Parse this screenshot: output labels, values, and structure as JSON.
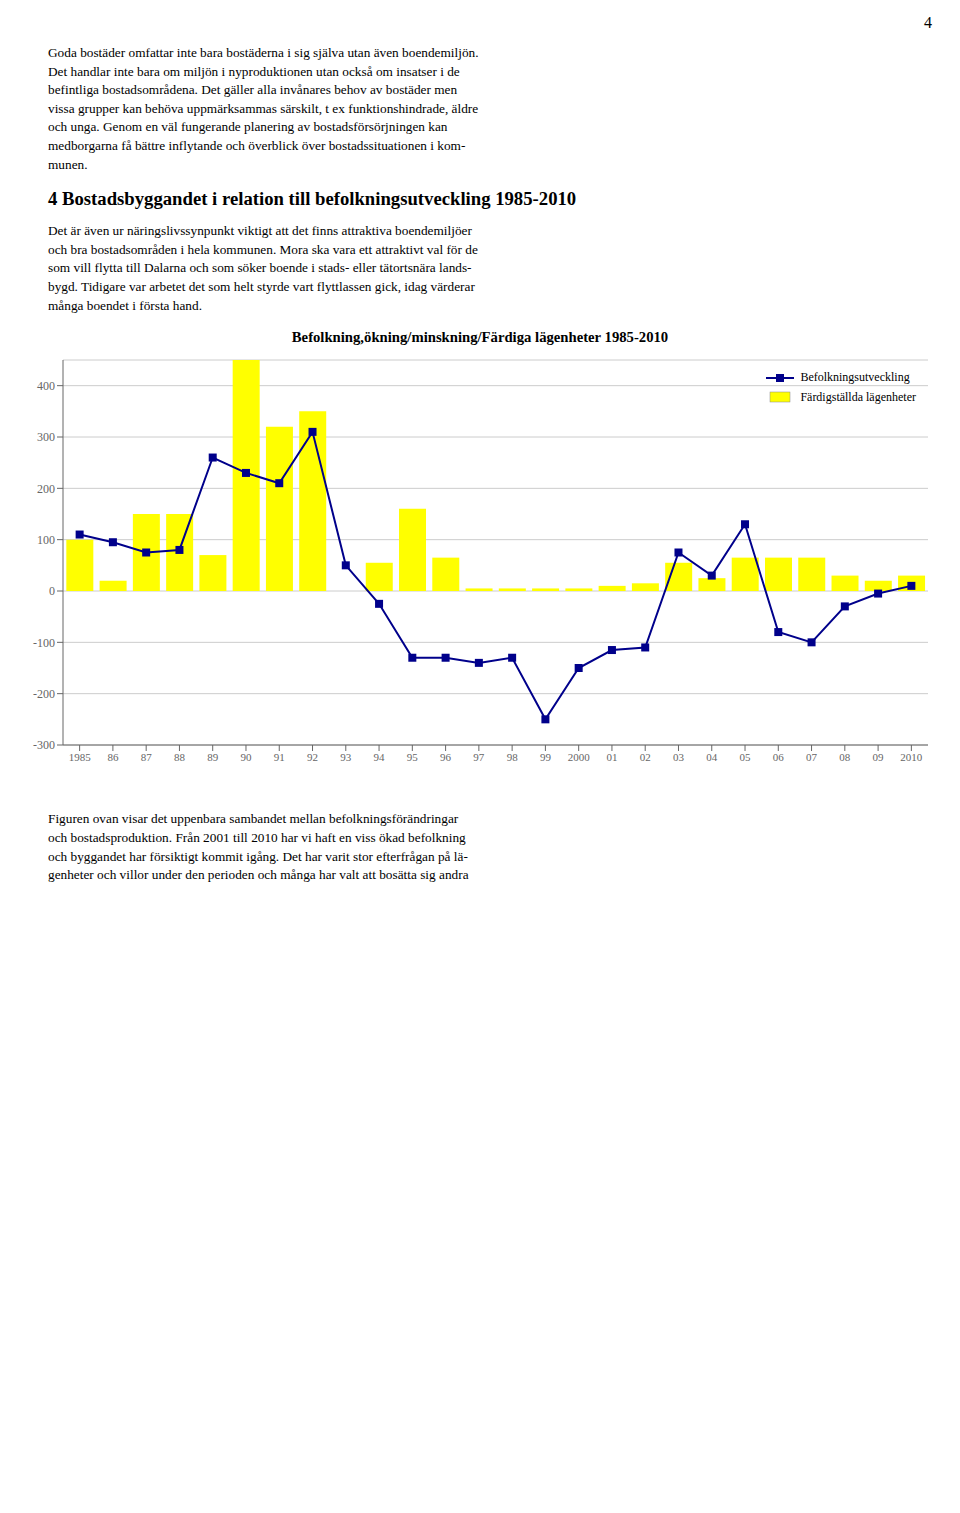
{
  "chart_data": {
    "type": "bar",
    "title": "Befolkning,ökning/minskning/Färdiga lägenheter 1985-2010",
    "annotations": [
      "4",
      "Goda bostäder omfattar inte bara bostäderna i sig själva utan även boendemiljön.\nDet handlar inte bara om miljön i nyproduktionen utan också om insatser i de\nbefintliga bostadsområdena. Det gäller alla invånares behov av bostäder men\nvissa grupper kan behöva uppmärksammas särskilt, t ex funktionshindrade, äldre\noch unga. Genom en väl fungerande planering av bostadsförsörjningen kan\nmedborgarna få bättre inflytande och överblick över bostadssituationen i kom-\nmunen.",
      "4 Bostadsbyggandet i relation till befolkningsutveckling 1985-2010",
      "Det är även ur näringslivssynpunkt viktigt att det finns attraktiva boendemiljöer\noch bra bostadsområden i hela kommunen. Mora ska vara ett attraktivt val för de\nsom vill flytta till Dalarna och som söker boende i stads- eller tätortsnära lands-\nbygd. Tidigare var arbetet det som helt styrde vart flyttlassen gick, idag värderar\nmånga boendet i första hand.",
      "Figuren ovan visar det uppenbara sambandet mellan befolkningsförändringar\noch bostadsproduktion. Från 2001 till 2010 har vi haft en viss ökad befolkning\noch byggandet har försiktigt kommit igång. Det har varit stor efterfrågan på lä-\ngenheter och villor under den perioden och många har valt att bosätta sig andra"
    ],
    "categories": [
      "1985",
      "86",
      "87",
      "88",
      "89",
      "90",
      "91",
      "92",
      "93",
      "94",
      "95",
      "96",
      "97",
      "98",
      "99",
      "2000",
      "01",
      "02",
      "03",
      "04",
      "05",
      "06",
      "07",
      "08",
      "09",
      "2010"
    ],
    "series": [
      {
        "name": "Befolkningsutveckling",
        "type": "line",
        "color": "#00008B",
        "marker": "square",
        "values": [
          110,
          95,
          75,
          80,
          260,
          230,
          210,
          310,
          50,
          -25,
          -130,
          -130,
          -140,
          -130,
          -250,
          -150,
          -115,
          -110,
          75,
          30,
          130,
          -80,
          -100,
          -30,
          -5,
          10
        ]
      },
      {
        "name": "Färdigställda lägenheter",
        "type": "bar",
        "color": "#FFFF00",
        "values": [
          100,
          20,
          150,
          150,
          70,
          450,
          320,
          350,
          0,
          55,
          160,
          65,
          5,
          5,
          5,
          5,
          10,
          15,
          55,
          25,
          65,
          65,
          65,
          30,
          20,
          30
        ]
      }
    ],
    "ylim": [
      -300,
      450
    ],
    "yticks": [
      -300,
      -200,
      -100,
      0,
      100,
      200,
      300,
      400
    ],
    "grid": true,
    "legend": "upper right"
  }
}
